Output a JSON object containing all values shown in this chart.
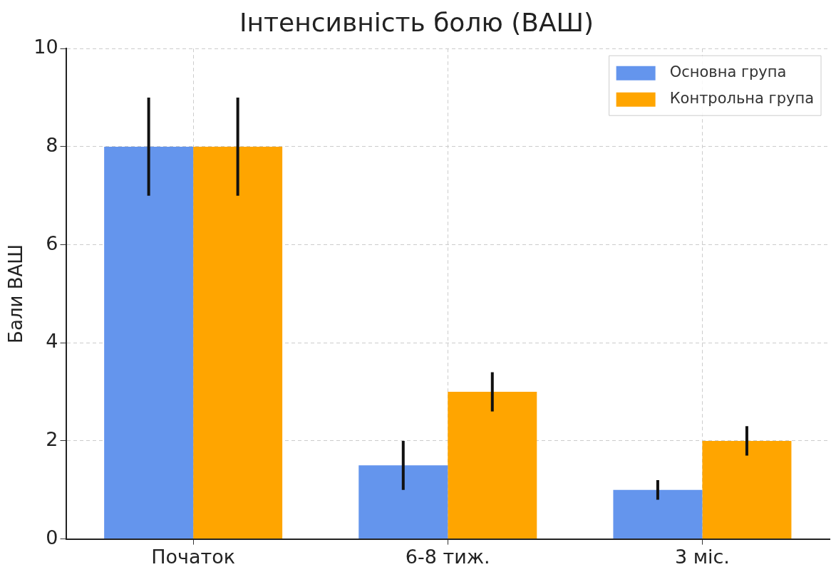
{
  "chart_data": {
    "type": "bar",
    "title": "Інтенсивність болю (ВАШ)",
    "ylabel": "Бали ВАШ",
    "categories": [
      "Початок",
      "6-8 тиж.",
      "3 міс."
    ],
    "series": [
      {
        "name": "Основна група",
        "color": "#6495ed",
        "values": [
          8,
          1.5,
          1
        ],
        "errors": [
          1,
          0.5,
          0.2
        ]
      },
      {
        "name": "Контрольна група",
        "color": "#ffa500",
        "values": [
          8,
          3,
          2
        ],
        "errors": [
          1,
          0.4,
          0.3
        ]
      }
    ],
    "ylim": [
      0,
      10
    ],
    "yticks": [
      0,
      2,
      4,
      6,
      8,
      10
    ],
    "grid": true,
    "legend": "top right"
  }
}
